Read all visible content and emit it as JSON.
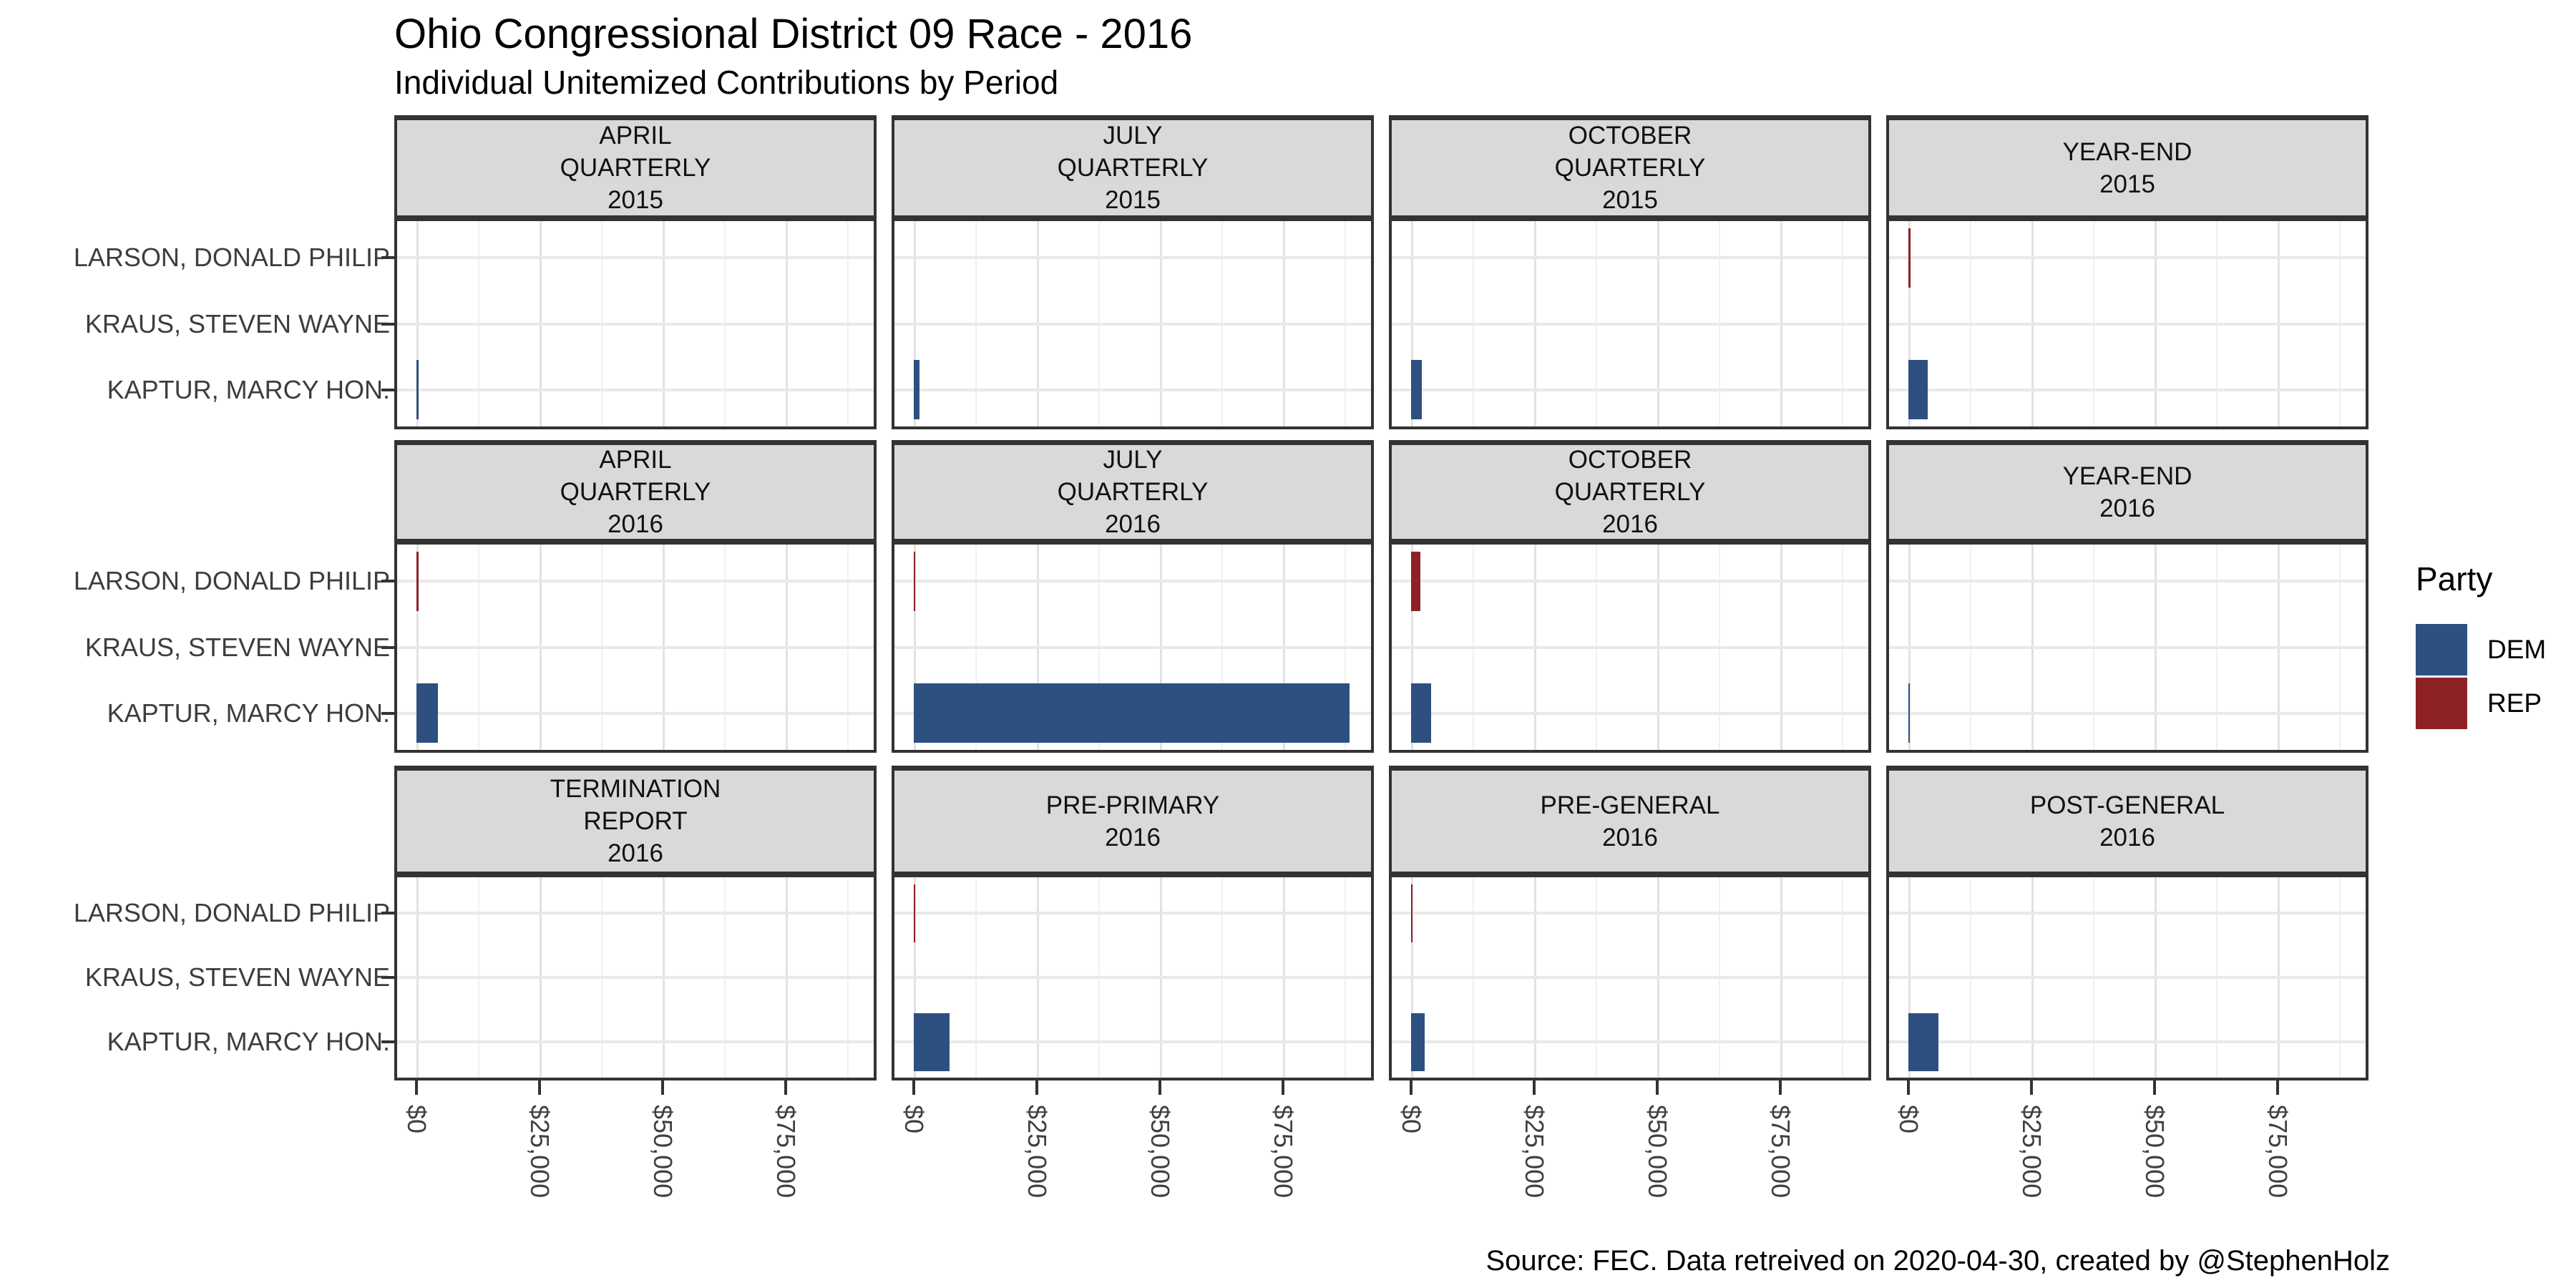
{
  "title": "Ohio Congressional District 09 Race - 2016",
  "subtitle": "Individual Unitemized Contributions by Period",
  "caption": "Source: FEC. Data retreived on 2020-04-30, created by @StephenHolz",
  "legend": {
    "title": "Party",
    "items": [
      {
        "label": "DEM",
        "color": "#2D5080"
      },
      {
        "label": "REP",
        "color": "#8D2123"
      }
    ]
  },
  "party_colors": {
    "DEM": "#2D5080",
    "REP": "#8D2123"
  },
  "chart_data": {
    "type": "bar",
    "orientation": "horizontal",
    "facet_layout": {
      "rows": 3,
      "cols": 4
    },
    "candidates": [
      "LARSON, DONALD PHILIP",
      "KRAUS, STEVEN WAYNE",
      "KAPTUR, MARCY HON."
    ],
    "x_axis": {
      "tick_labels": [
        "$0",
        "$25,000",
        "$50,000",
        "$75,000"
      ],
      "tick_values": [
        0,
        25000,
        50000,
        75000
      ],
      "range_shown": [
        0,
        93000
      ],
      "unit": "USD"
    },
    "grid": {
      "vertical_major": true,
      "vertical_minor": true,
      "horizontal_major": true
    },
    "legend_position": "right",
    "values_are_estimates": true,
    "facets": [
      {
        "label": "APRIL QUARTERLY 2015",
        "lines": [
          "APRIL",
          "QUARTERLY",
          "2015"
        ],
        "bars": [
          {
            "candidate": "KAPTUR, MARCY HON.",
            "party": "DEM",
            "value": 400
          }
        ]
      },
      {
        "label": "JULY QUARTERLY 2015",
        "lines": [
          "JULY",
          "QUARTERLY",
          "2015"
        ],
        "bars": [
          {
            "candidate": "KAPTUR, MARCY HON.",
            "party": "DEM",
            "value": 1200
          }
        ]
      },
      {
        "label": "OCTOBER QUARTERLY 2015",
        "lines": [
          "OCTOBER",
          "QUARTERLY",
          "2015"
        ],
        "bars": [
          {
            "candidate": "KAPTUR, MARCY HON.",
            "party": "DEM",
            "value": 2200
          }
        ]
      },
      {
        "label": "YEAR-END 2015",
        "lines": [
          "YEAR-END",
          "2015"
        ],
        "bars": [
          {
            "candidate": "LARSON, DONALD PHILIP",
            "party": "REP",
            "value": 450
          },
          {
            "candidate": "KAPTUR, MARCY HON.",
            "party": "DEM",
            "value": 3900
          }
        ]
      },
      {
        "label": "APRIL QUARTERLY 2016",
        "lines": [
          "APRIL",
          "QUARTERLY",
          "2016"
        ],
        "bars": [
          {
            "candidate": "LARSON, DONALD PHILIP",
            "party": "REP",
            "value": 500
          },
          {
            "candidate": "KAPTUR, MARCY HON.",
            "party": "DEM",
            "value": 4300
          }
        ]
      },
      {
        "label": "JULY QUARTERLY 2016",
        "lines": [
          "JULY",
          "QUARTERLY",
          "2016"
        ],
        "bars": [
          {
            "candidate": "LARSON, DONALD PHILIP",
            "party": "REP",
            "value": 250
          },
          {
            "candidate": "KAPTUR, MARCY HON.",
            "party": "DEM",
            "value": 88500
          }
        ]
      },
      {
        "label": "OCTOBER QUARTERLY 2016",
        "lines": [
          "OCTOBER",
          "QUARTERLY",
          "2016"
        ],
        "bars": [
          {
            "candidate": "LARSON, DONALD PHILIP",
            "party": "REP",
            "value": 1850
          },
          {
            "candidate": "KAPTUR, MARCY HON.",
            "party": "DEM",
            "value": 4100
          }
        ]
      },
      {
        "label": "YEAR-END 2016",
        "lines": [
          "YEAR-END",
          "2016"
        ],
        "bars": [
          {
            "candidate": "KAPTUR, MARCY HON.",
            "party": "DEM",
            "value": 150
          }
        ]
      },
      {
        "label": "TERMINATION REPORT 2016",
        "lines": [
          "TERMINATION",
          "REPORT",
          "2016"
        ],
        "bars": []
      },
      {
        "label": "PRE-PRIMARY 2016",
        "lines": [
          "PRE-PRIMARY",
          "2016"
        ],
        "bars": [
          {
            "candidate": "LARSON, DONALD PHILIP",
            "party": "REP",
            "value": 250
          },
          {
            "candidate": "KAPTUR, MARCY HON.",
            "party": "DEM",
            "value": 7300
          }
        ]
      },
      {
        "label": "PRE-GENERAL 2016",
        "lines": [
          "PRE-GENERAL",
          "2016"
        ],
        "bars": [
          {
            "candidate": "LARSON, DONALD PHILIP",
            "party": "REP",
            "value": 200
          },
          {
            "candidate": "KAPTUR, MARCY HON.",
            "party": "DEM",
            "value": 2800
          }
        ]
      },
      {
        "label": "POST-GENERAL 2016",
        "lines": [
          "POST-GENERAL",
          "2016"
        ],
        "bars": [
          {
            "candidate": "KAPTUR, MARCY HON.",
            "party": "DEM",
            "value": 6100
          }
        ]
      }
    ]
  }
}
